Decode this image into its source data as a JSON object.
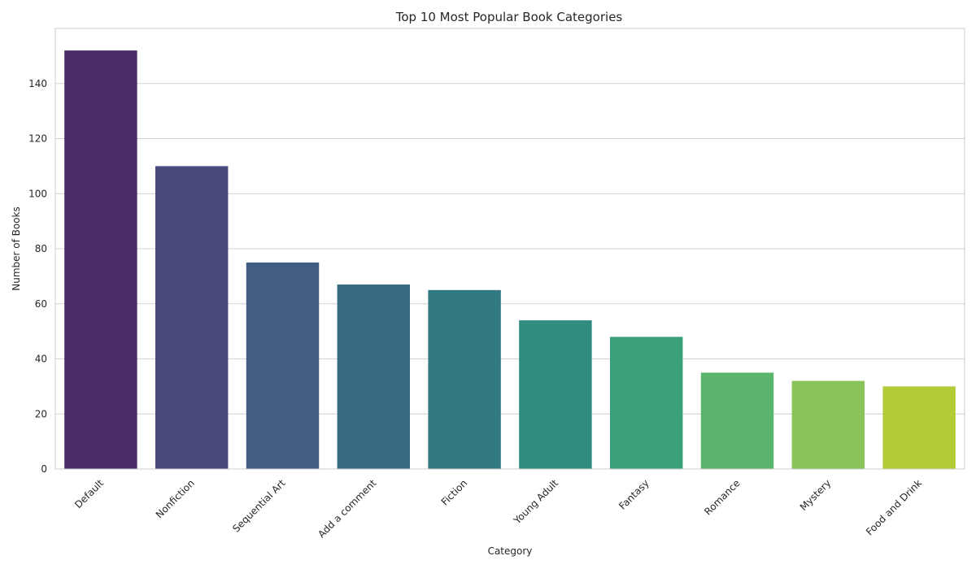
{
  "chart_data": {
    "type": "bar",
    "title": "Top 10 Most Popular Book Categories",
    "xlabel": "Category",
    "ylabel": "Number of Books",
    "categories": [
      "Default",
      "Nonfiction",
      "Sequential Art",
      "Add a comment",
      "Fiction",
      "Young Adult",
      "Fantasy",
      "Romance",
      "Mystery",
      "Food and Drink"
    ],
    "values": [
      152,
      110,
      75,
      67,
      65,
      54,
      48,
      35,
      32,
      30
    ],
    "colors": [
      "#4b2a68",
      "#4a4a7d",
      "#435d82",
      "#3a6b82",
      "#317b80",
      "#2e8d7f",
      "#3aa078",
      "#5cb56d",
      "#88c45a",
      "#b2cb37"
    ],
    "ylim": [
      0,
      160
    ],
    "yticks": [
      0,
      20,
      40,
      60,
      80,
      100,
      120,
      140
    ],
    "grid": true,
    "legend": "none"
  }
}
